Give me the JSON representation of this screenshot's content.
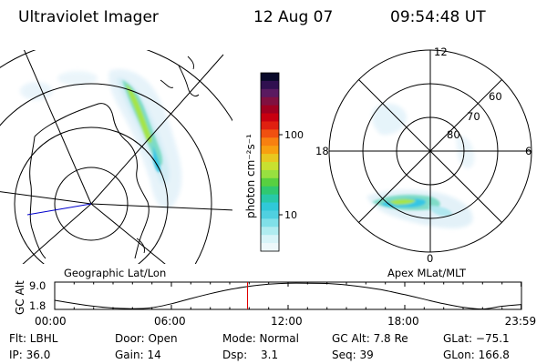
{
  "header": {
    "instrument": "Ultraviolet Imager",
    "date": "12 Aug 07",
    "time": "09:54:48 UT"
  },
  "colors": {
    "emission_low": "#dff0fa",
    "emission_mid": "#6fd6c4",
    "emission_high": "#34c8e8",
    "emission_peak": "#a0e040",
    "marker": "#e00000",
    "meridian": "#0000cc"
  },
  "geo_map": {
    "label": "Geographic Lat/Lon"
  },
  "apex_map": {
    "label": "Apex MLat/MLT",
    "mlt_labels": [
      "12",
      "18",
      "6",
      "0"
    ],
    "mlat_labels": [
      "60",
      "70",
      "80"
    ]
  },
  "colorbar": {
    "unit_label": "photon cm⁻²s⁻¹",
    "tick_labels": [
      "100",
      "10"
    ],
    "colors": [
      "#0a0a2a",
      "#301050",
      "#5a1a60",
      "#801040",
      "#a00020",
      "#c80010",
      "#e02010",
      "#f05010",
      "#f88010",
      "#f8a010",
      "#e8c820",
      "#c8e030",
      "#98e040",
      "#58d040",
      "#30c870",
      "#28c8a8",
      "#30c8d8",
      "#50d0e0",
      "#80e0e8",
      "#b0ecf0",
      "#d8f4f8",
      "#eef8fa"
    ]
  },
  "altitude_plot": {
    "ylabel": "GC Alt",
    "y_ticks": [
      "9.0",
      "1.8"
    ],
    "x_ticks": [
      "00:00",
      "06:00",
      "12:00",
      "18:00",
      "23:59"
    ]
  },
  "footer": {
    "filter": "Flt: LBHL",
    "ip": "IP: 36.0",
    "door": "Door: Open",
    "gain": "Gain: 14",
    "mode": "Mode: Normal",
    "dsp_label": "Dsp:",
    "dsp_value": "3.1",
    "gc_alt": "GC Alt: 7.8 Re",
    "seq": "Seq: 39",
    "glat": "GLat: −75.1",
    "glon": "GLon: 166.8"
  },
  "chart_data": {
    "type": "line",
    "title": "",
    "xlabel": "",
    "ylabel": "GC Alt",
    "x": [
      0,
      1,
      2,
      3,
      4,
      5,
      6,
      7,
      8,
      9,
      10,
      11,
      12,
      13,
      14,
      15,
      16,
      17,
      18,
      19,
      20,
      21,
      22,
      23,
      23.98
    ],
    "series": [
      {
        "values": [
          4.1,
          3.2,
          2.4,
          1.9,
          1.7,
          2.0,
          3.1,
          4.6,
          6.0,
          7.2,
          8.1,
          8.7,
          9.0,
          9.0,
          8.9,
          8.5,
          7.8,
          6.9,
          5.7,
          4.4,
          3.1,
          2.1,
          1.6,
          2.4,
          2.9
        ]
      }
    ],
    "xlim": [
      0,
      24
    ],
    "ylim": [
      1.5,
      9.3
    ],
    "marker_time": 9.913
  }
}
